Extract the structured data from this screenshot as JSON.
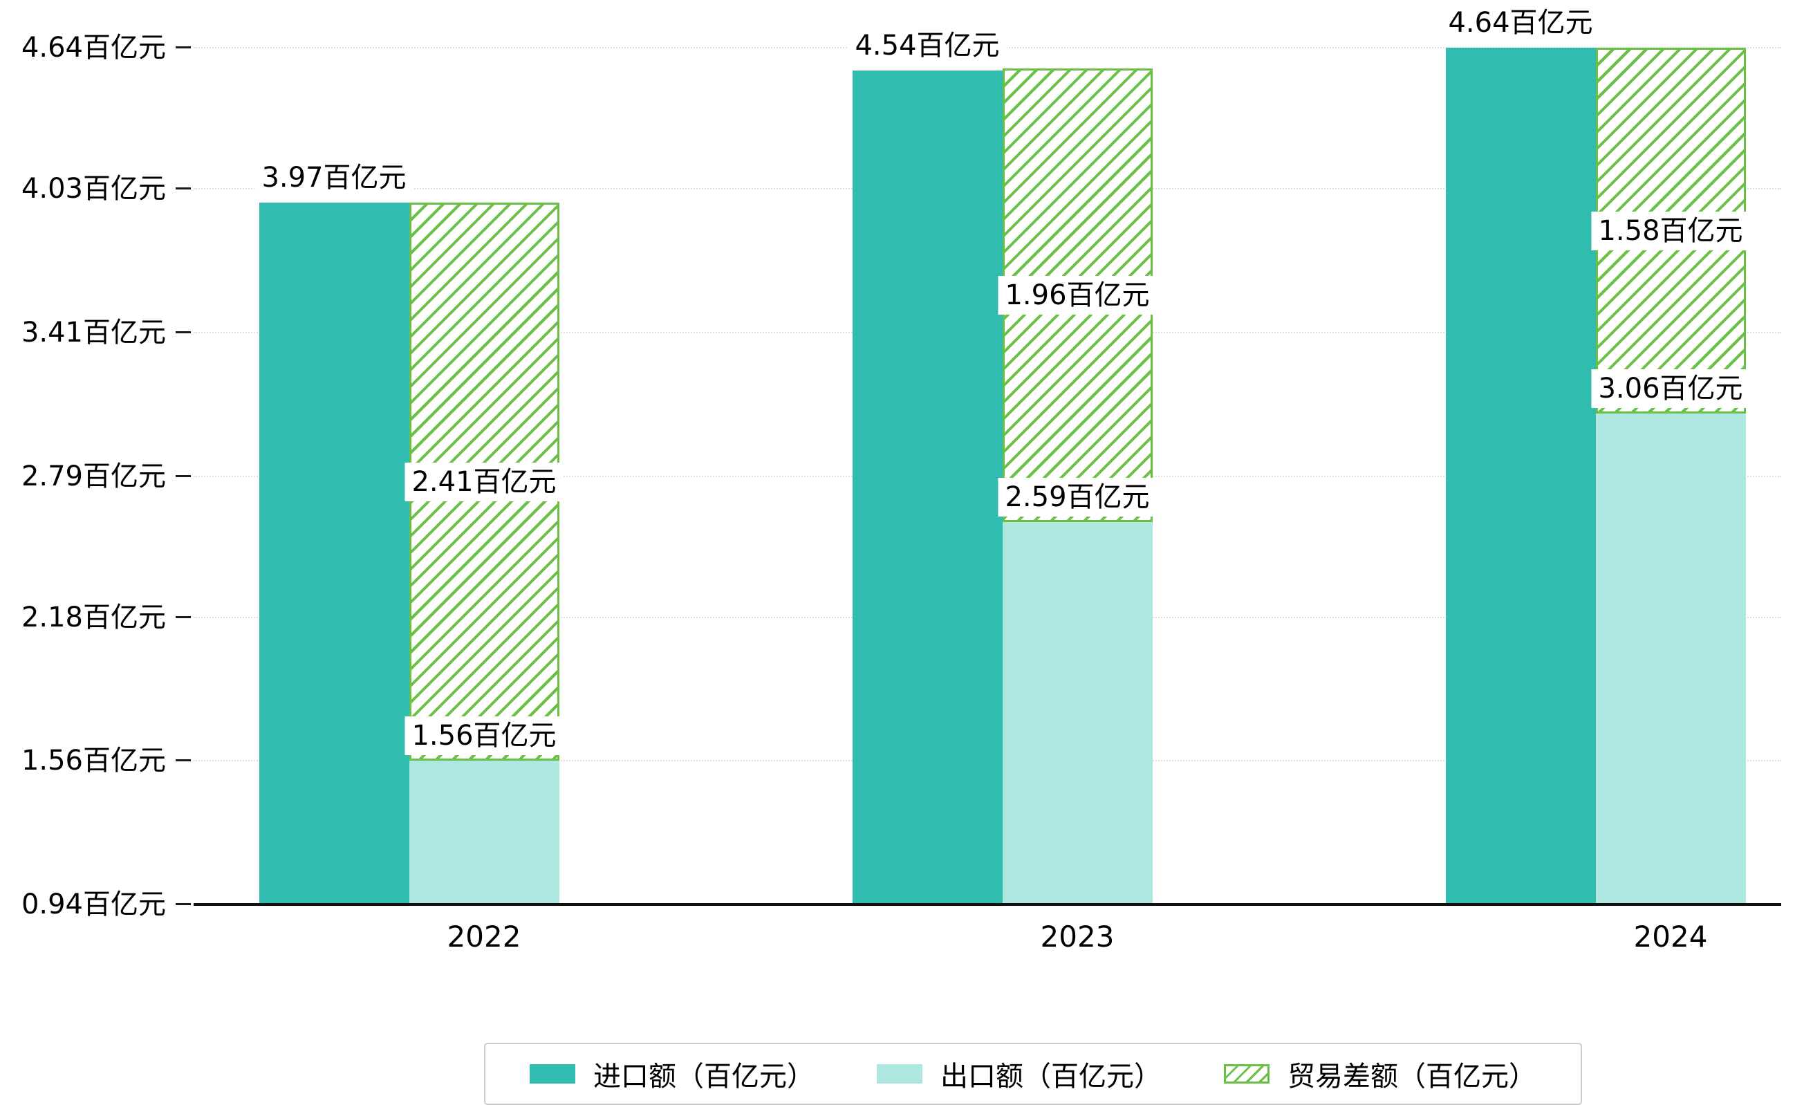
{
  "figure": {
    "background": "#ffffff"
  },
  "chart_data": {
    "type": "bar",
    "title": "",
    "unit": "百亿元",
    "categories": [
      "2022",
      "2023",
      "2024"
    ],
    "series": [
      {
        "name": "进口额（百亿元）",
        "role": "import",
        "values": [
          3.97,
          4.54,
          4.64
        ],
        "labels": [
          "3.97百亿元",
          "4.54百亿元",
          "4.64百亿元"
        ],
        "color": "#31bcb0"
      },
      {
        "name": "出口额（百亿元）",
        "role": "export",
        "values": [
          1.56,
          2.59,
          3.06
        ],
        "labels": [
          "1.56百亿元",
          "2.59百亿元",
          "3.06百亿元"
        ],
        "color": "#aee6e0"
      },
      {
        "name": "贸易差额（百亿元）",
        "role": "diff",
        "values": [
          2.41,
          1.96,
          1.58
        ],
        "labels": [
          "2.41百亿元",
          "1.96百亿元",
          "1.58百亿元"
        ],
        "color": "#6abf45",
        "hatch": "/",
        "base": "export-top"
      }
    ],
    "y_ticks": [
      {
        "value": 0.94,
        "label": "0.94百亿元"
      },
      {
        "value": 1.56,
        "label": "1.56百亿元"
      },
      {
        "value": 2.18,
        "label": "2.18百亿元"
      },
      {
        "value": 2.79,
        "label": "2.79百亿元"
      },
      {
        "value": 3.41,
        "label": "3.41百亿元"
      },
      {
        "value": 4.03,
        "label": "4.03百亿元"
      },
      {
        "value": 4.64,
        "label": "4.64百亿元"
      }
    ],
    "ylim": [
      0.94,
      4.64
    ],
    "grid": "horizontal-dotted",
    "legend_position": "bottom"
  }
}
